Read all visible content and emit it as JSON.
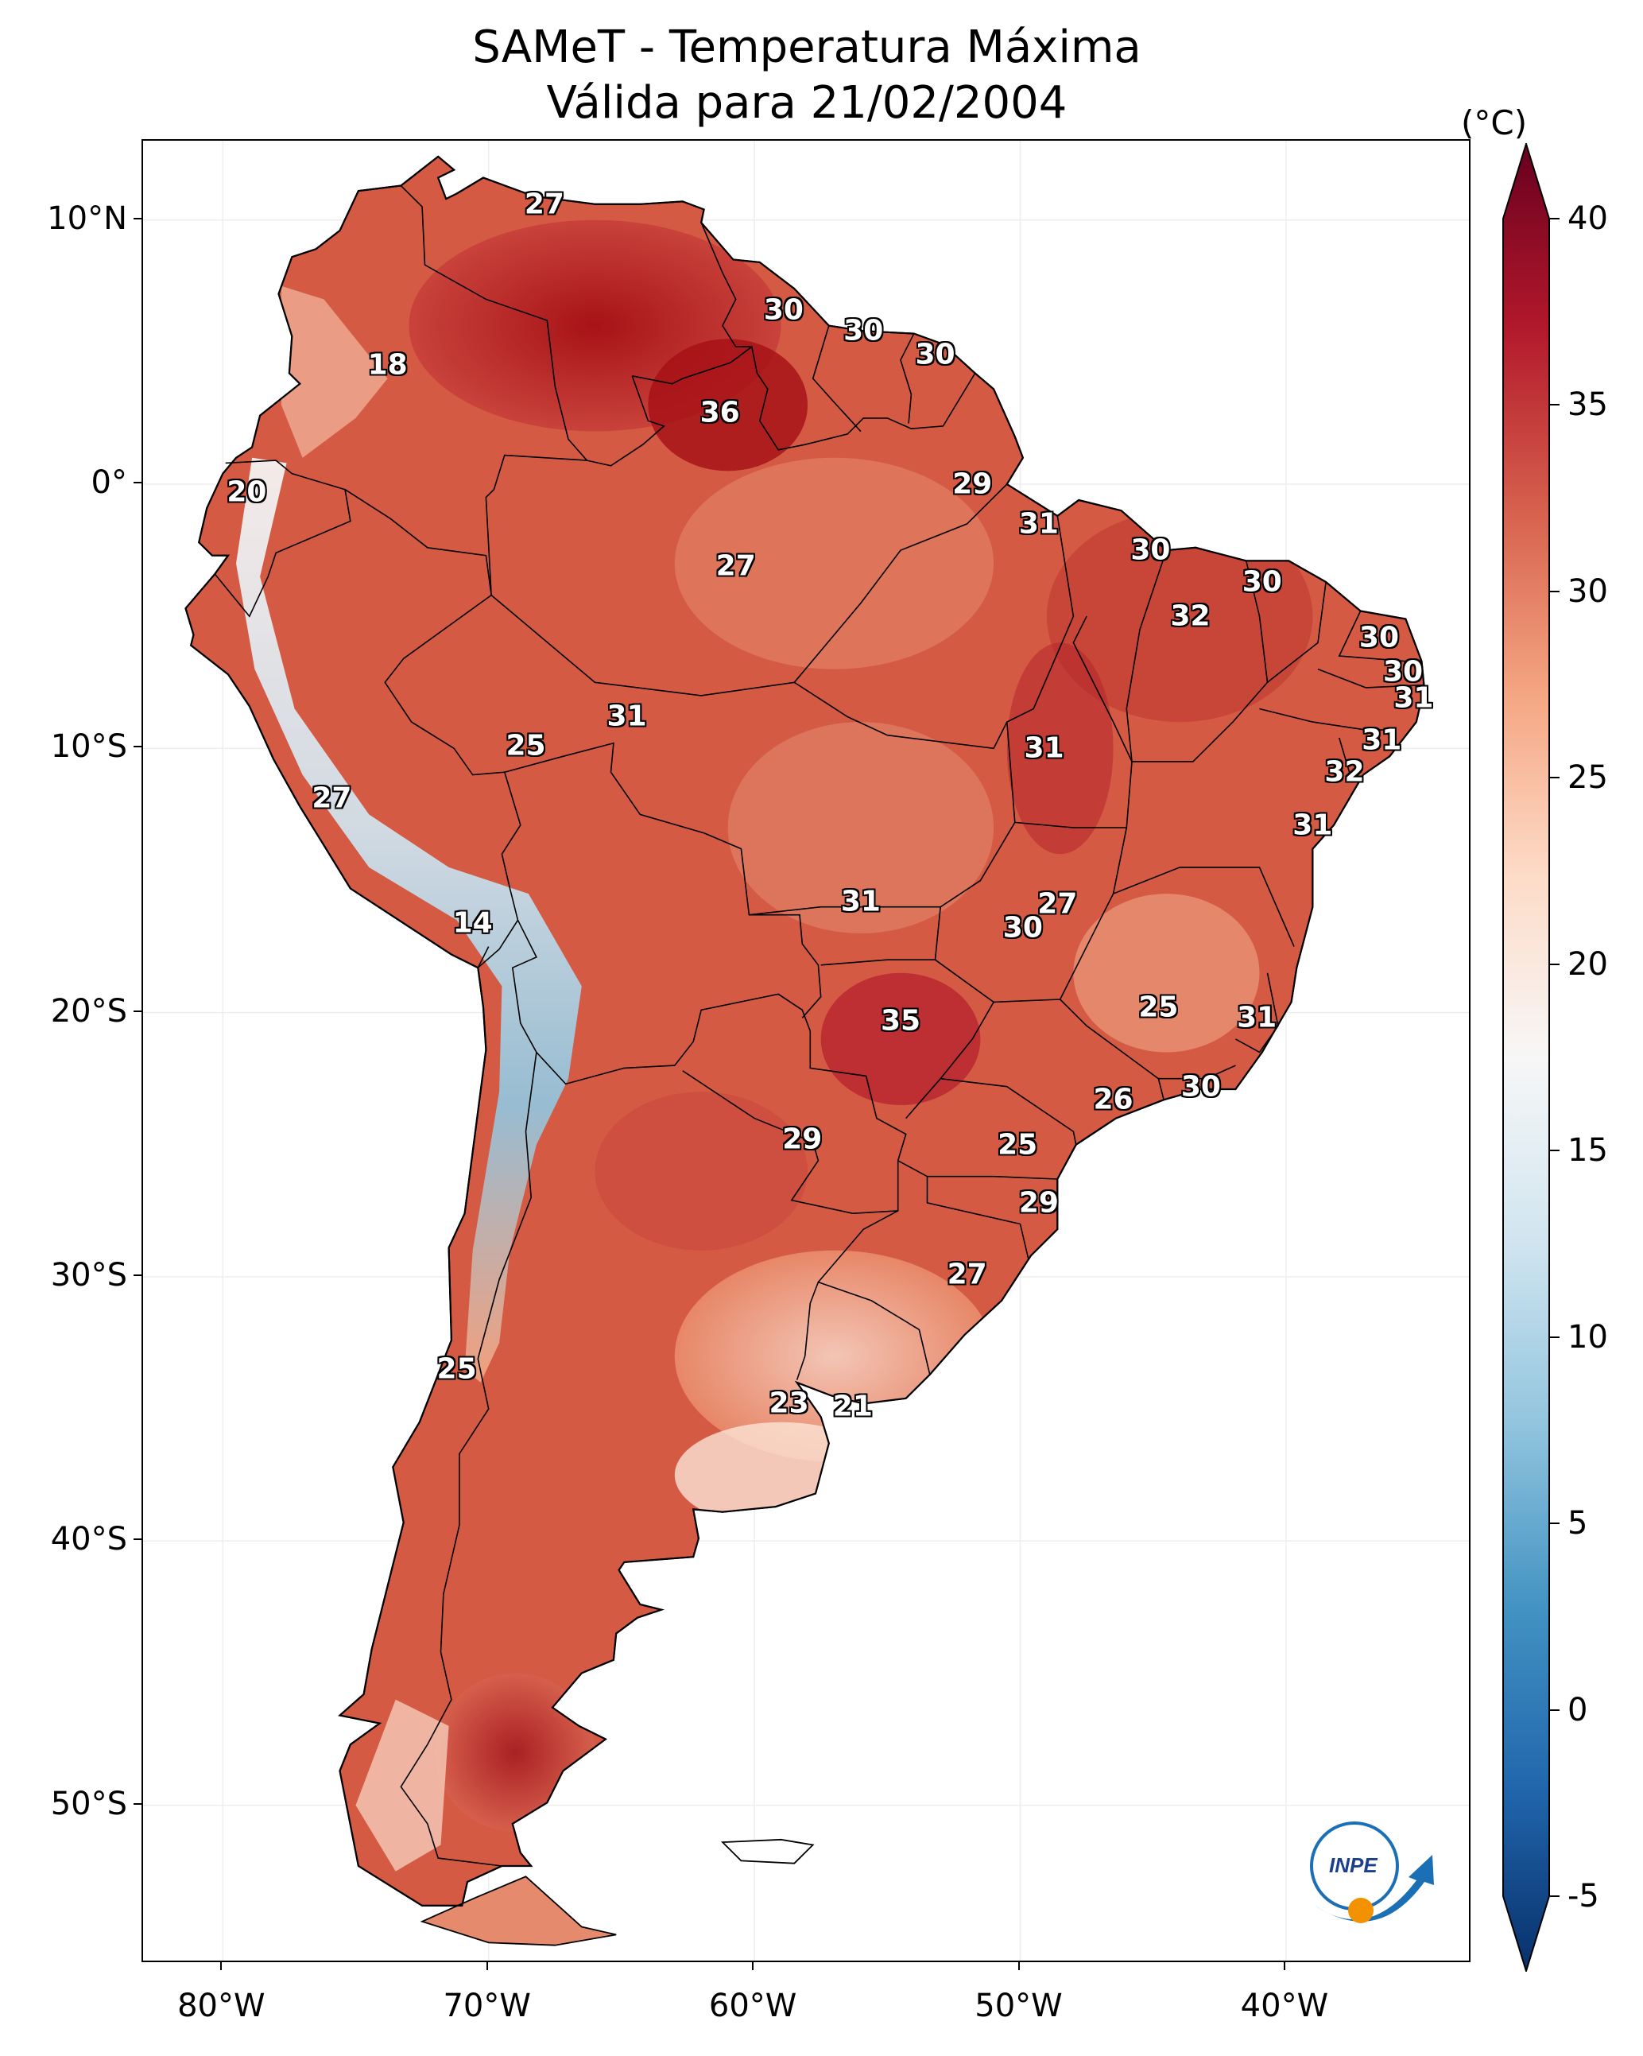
{
  "title": {
    "line1": "SAMeT - Temperatura Máxima",
    "line2": "Válida para 21/02/2004"
  },
  "axes": {
    "lat_labels": [
      "10°N",
      "0°",
      "10°S",
      "20°S",
      "30°S",
      "40°S",
      "50°S"
    ],
    "lat_values": [
      10,
      0,
      -10,
      -20,
      -30,
      -40,
      -50
    ],
    "lon_labels": [
      "80°W",
      "70°W",
      "60°W",
      "50°W",
      "40°W"
    ],
    "lon_values": [
      -80,
      -70,
      -60,
      -50,
      -40
    ],
    "lon_range": [
      -83,
      -33
    ],
    "lat_range": [
      -56,
      13
    ]
  },
  "colorbar": {
    "unit": "(°C)",
    "tick_labels": [
      "40",
      "35",
      "30",
      "25",
      "20",
      "15",
      "10",
      "5",
      "0",
      "-5"
    ],
    "tick_values": [
      40,
      35,
      30,
      25,
      20,
      15,
      10,
      5,
      0,
      -5
    ],
    "range": [
      -5,
      40
    ],
    "colors": [
      "#08306b",
      "#2166ac",
      "#4393c3",
      "#92c5de",
      "#d1e5f0",
      "#f7f7f7",
      "#fddbc7",
      "#f4a582",
      "#d6604d",
      "#b2182b",
      "#67001f"
    ]
  },
  "value_labels": [
    {
      "text": "27",
      "lon": -67.9,
      "lat": 10.6
    },
    {
      "text": "18",
      "lon": -73.8,
      "lat": 4.5
    },
    {
      "text": "30",
      "lon": -58.9,
      "lat": 6.6
    },
    {
      "text": "30",
      "lon": -55.9,
      "lat": 5.8
    },
    {
      "text": "30",
      "lon": -53.2,
      "lat": 4.9
    },
    {
      "text": "36",
      "lon": -61.3,
      "lat": 2.7
    },
    {
      "text": "20",
      "lon": -79.1,
      "lat": -0.3
    },
    {
      "text": "29",
      "lon": -51.8,
      "lat": 0.0
    },
    {
      "text": "31",
      "lon": -49.3,
      "lat": -1.5
    },
    {
      "text": "30",
      "lon": -45.1,
      "lat": -2.5
    },
    {
      "text": "27",
      "lon": -60.7,
      "lat": -3.1
    },
    {
      "text": "30",
      "lon": -40.9,
      "lat": -3.7
    },
    {
      "text": "32",
      "lon": -43.6,
      "lat": -5.0
    },
    {
      "text": "30",
      "lon": -36.5,
      "lat": -5.8
    },
    {
      "text": "30",
      "lon": -35.6,
      "lat": -7.1
    },
    {
      "text": "31",
      "lon": -35.2,
      "lat": -8.1
    },
    {
      "text": "31",
      "lon": -64.8,
      "lat": -8.8
    },
    {
      "text": "25",
      "lon": -68.6,
      "lat": -9.9
    },
    {
      "text": "31",
      "lon": -49.1,
      "lat": -10.0
    },
    {
      "text": "31",
      "lon": -36.4,
      "lat": -9.7
    },
    {
      "text": "32",
      "lon": -37.8,
      "lat": -10.9
    },
    {
      "text": "27",
      "lon": -75.9,
      "lat": -11.9
    },
    {
      "text": "31",
      "lon": -39.0,
      "lat": -12.9
    },
    {
      "text": "31",
      "lon": -56.0,
      "lat": -15.8
    },
    {
      "text": "27",
      "lon": -48.6,
      "lat": -15.9
    },
    {
      "text": "30",
      "lon": -49.9,
      "lat": -16.8
    },
    {
      "text": "14",
      "lon": -70.6,
      "lat": -16.6
    },
    {
      "text": "25",
      "lon": -44.8,
      "lat": -19.8
    },
    {
      "text": "31",
      "lon": -41.1,
      "lat": -20.2
    },
    {
      "text": "35",
      "lon": -54.5,
      "lat": -20.3
    },
    {
      "text": "30",
      "lon": -43.2,
      "lat": -22.8
    },
    {
      "text": "26",
      "lon": -46.5,
      "lat": -23.3
    },
    {
      "text": "29",
      "lon": -58.2,
      "lat": -24.8
    },
    {
      "text": "25",
      "lon": -50.1,
      "lat": -25.0
    },
    {
      "text": "29",
      "lon": -49.3,
      "lat": -27.2
    },
    {
      "text": "27",
      "lon": -52.0,
      "lat": -29.9
    },
    {
      "text": "25",
      "lon": -71.2,
      "lat": -33.5
    },
    {
      "text": "23",
      "lon": -58.7,
      "lat": -34.8
    },
    {
      "text": "21",
      "lon": -56.3,
      "lat": -34.9
    }
  ],
  "logo": {
    "text": "INPE"
  }
}
